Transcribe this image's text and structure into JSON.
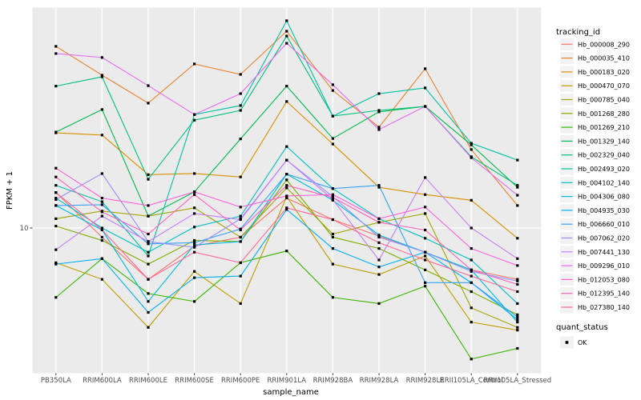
{
  "figure": {
    "xlabel": "sample_name",
    "ylabel": "FPKM + 1",
    "legend_title": "tracking_id",
    "quant_legend_title": "quant_status",
    "quant_legend_item": "OK"
  },
  "chart_data": {
    "type": "line",
    "title": "",
    "xlabel": "sample_name",
    "ylabel": "FPKM + 1",
    "y_scale": "log10",
    "y_tick_labels": [
      "10"
    ],
    "y_ticks": [
      10
    ],
    "ylim_approx": [
      2.2,
      110
    ],
    "grid": "white-on-gray-panel",
    "legend_position": "right",
    "panel_color": "#EBEBEB",
    "point_marker": "black-square",
    "quant_status": {
      "title": "quant_status",
      "items": [
        {
          "label": "OK",
          "marker_color": "#000000"
        }
      ]
    },
    "categories": [
      "PB350LA",
      "RRIM600LA",
      "RRIM600LE",
      "RRIM600SE",
      "RRIM600PE",
      "RRIM901LA",
      "RRIM928BA",
      "RRIM928LA",
      "RRIM928LE",
      "RRII105LA_Control",
      "RRII105LA_Stressed"
    ],
    "series": [
      {
        "name": "Hb_000008_290",
        "color": "#F8766D",
        "values": [
          14.4,
          9.1,
          5.9,
          8.3,
          9.1,
          13.6,
          10.9,
          9.2,
          7.8,
          6.5,
          5.9
        ]
      },
      {
        "name": "Hb_000035_410",
        "color": "#EA8331",
        "values": [
          64.7,
          48.1,
          36.1,
          54.0,
          48.5,
          75.6,
          41.1,
          28.2,
          51.4,
          22.4,
          12.6
        ]
      },
      {
        "name": "Hb_000183_020",
        "color": "#D89000",
        "values": [
          26.6,
          26.0,
          17.3,
          17.5,
          16.9,
          36.7,
          23.7,
          15.2,
          14.1,
          13.3,
          9.0
        ]
      },
      {
        "name": "Hb_000470_070",
        "color": "#C09B00",
        "values": [
          7.0,
          5.9,
          3.6,
          6.4,
          4.6,
          13.8,
          6.9,
          6.2,
          7.5,
          3.8,
          3.5
        ]
      },
      {
        "name": "Hb_000785_040",
        "color": "#A3A500",
        "values": [
          11.0,
          11.9,
          11.3,
          12.3,
          9.1,
          15.1,
          9.4,
          10.6,
          11.6,
          4.4,
          3.6
        ]
      },
      {
        "name": "Hb_001268_280",
        "color": "#7CAE00",
        "values": [
          10.2,
          8.8,
          6.9,
          8.8,
          8.7,
          16.4,
          9.1,
          8.1,
          6.5,
          5.2,
          4.1
        ]
      },
      {
        "name": "Hb_001269_210",
        "color": "#39B600",
        "values": [
          4.9,
          7.3,
          5.1,
          4.7,
          7.0,
          7.9,
          4.9,
          4.6,
          5.5,
          2.6,
          2.9
        ]
      },
      {
        "name": "Hb_001329_140",
        "color": "#00BB4E",
        "values": [
          26.8,
          33.8,
          11.3,
          14.5,
          25.0,
          43.0,
          25.1,
          33.0,
          34.9,
          23.5,
          15.2
        ]
      },
      {
        "name": "Hb_002329_040",
        "color": "#00BF7D",
        "values": [
          43.0,
          47.3,
          16.5,
          30.3,
          33.5,
          71.9,
          31.6,
          33.5,
          34.9,
          20.8,
          15.5
        ]
      },
      {
        "name": "Hb_002493_020",
        "color": "#00C1A3",
        "values": [
          15.5,
          13.1,
          7.5,
          32.1,
          35.2,
          84.2,
          31.6,
          39.8,
          42.2,
          23.9,
          20.1
        ]
      },
      {
        "name": "Hb_004102_140",
        "color": "#00BFC4",
        "values": [
          13.6,
          10.0,
          7.8,
          10.1,
          11.3,
          23.1,
          15.0,
          11.0,
          9.0,
          7.2,
          4.6
        ]
      },
      {
        "name": "Hb_004306_080",
        "color": "#00BAE0",
        "values": [
          12.6,
          9.8,
          4.7,
          8.4,
          8.7,
          17.4,
          13.3,
          9.3,
          7.8,
          6.5,
          3.8
        ]
      },
      {
        "name": "Hb_004935_030",
        "color": "#00B0F6",
        "values": [
          6.9,
          7.3,
          4.2,
          6.0,
          6.1,
          12.1,
          8.1,
          6.7,
          7.8,
          5.7,
          3.9
        ]
      },
      {
        "name": "Hb_006660_010",
        "color": "#35A2FF",
        "values": [
          12.6,
          12.7,
          8.5,
          8.6,
          9.9,
          17.4,
          15.0,
          15.5,
          5.7,
          5.7,
          4.0
        ]
      },
      {
        "name": "Hb_007062_020",
        "color": "#9590FF",
        "values": [
          13.4,
          17.5,
          8.7,
          8.2,
          11.0,
          20.1,
          13.8,
          9.1,
          7.8,
          6.4,
          5.8
        ]
      },
      {
        "name": "Hb_007441_130",
        "color": "#C77CFF",
        "values": [
          8.0,
          11.3,
          8.7,
          11.6,
          10.9,
          20.1,
          13.4,
          7.2,
          16.8,
          10.0,
          7.3
        ]
      },
      {
        "name": "Hb_009296_010",
        "color": "#E76BF3",
        "values": [
          60.1,
          57.7,
          43.2,
          32.1,
          39.8,
          66.8,
          43.6,
          27.5,
          34.9,
          20.6,
          14.0
        ]
      },
      {
        "name": "Hb_012053_080",
        "color": "#FA62DB",
        "values": [
          18.5,
          13.6,
          12.6,
          14.5,
          12.4,
          13.9,
          14.1,
          11.0,
          12.4,
          8.1,
          6.8
        ]
      },
      {
        "name": "Hb_012395_140",
        "color": "#FF62BC",
        "values": [
          16.9,
          11.8,
          9.4,
          14.1,
          9.8,
          15.5,
          13.7,
          10.6,
          9.8,
          6.5,
          5.6
        ]
      },
      {
        "name": "Hb_027380_140",
        "color": "#FF6A98",
        "values": [
          14.4,
          9.8,
          5.9,
          7.8,
          7.0,
          12.3,
          10.9,
          8.6,
          7.2,
          6.1,
          5.2
        ]
      }
    ]
  }
}
